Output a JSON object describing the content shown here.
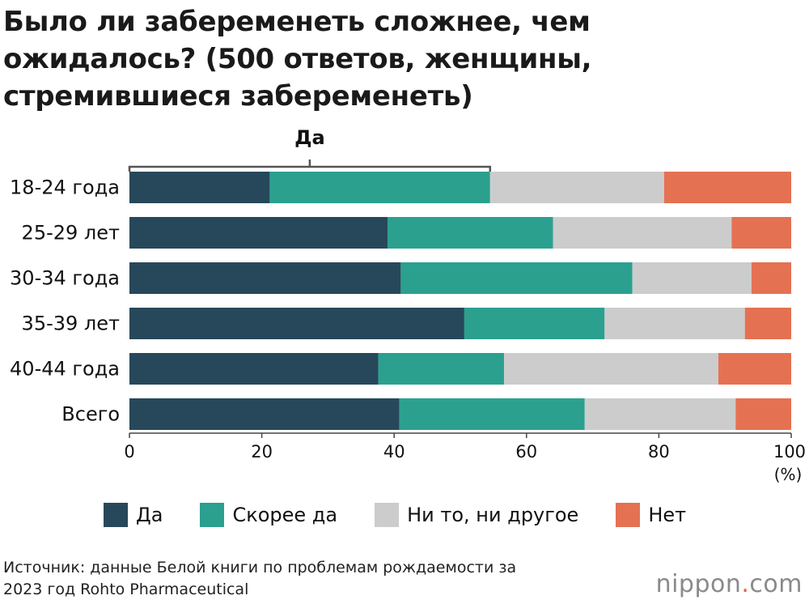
{
  "title": {
    "lines": [
      "Было ли забеременеть сложнее, чем",
      "ожидалось? (500 ответов, женщины,",
      "стремившиеся забеременеть)"
    ]
  },
  "chart_data": {
    "type": "bar",
    "orientation": "horizontal",
    "stacked": true,
    "categories": [
      "18-24 года",
      "25-29 лет",
      "30-34 года",
      "35-39 лет",
      "40-44 года",
      "Всего"
    ],
    "series": [
      {
        "name": "Да",
        "color": "#27485a",
        "values": [
          21.2,
          39.0,
          41.0,
          50.6,
          37.6,
          40.8
        ]
      },
      {
        "name": "Скорее да",
        "color": "#2ba08f",
        "values": [
          33.3,
          25.0,
          35.0,
          21.2,
          19.0,
          28.0
        ]
      },
      {
        "name": "Ни то, ни другое",
        "color": "#cccccc",
        "values": [
          26.3,
          27.0,
          18.0,
          21.2,
          32.4,
          22.8
        ]
      },
      {
        "name": "Нет",
        "color": "#e57153",
        "values": [
          19.2,
          9.0,
          6.0,
          7.0,
          11.0,
          8.4
        ]
      }
    ],
    "xlim": [
      0,
      100
    ],
    "xticks": [
      "0",
      "20",
      "40",
      "60",
      "80",
      "100"
    ],
    "unit_label": "(%)",
    "bracket_label": "Да",
    "legend_position": "bottom",
    "grid": false
  },
  "source": {
    "lines": [
      "Источник: данные Белой книги по проблемам рождаемости за",
      "2023 год Rohto Pharmaceutical"
    ]
  },
  "logo": {
    "text_main": "nippon",
    "text_dot": ".",
    "text_tail": "com"
  }
}
